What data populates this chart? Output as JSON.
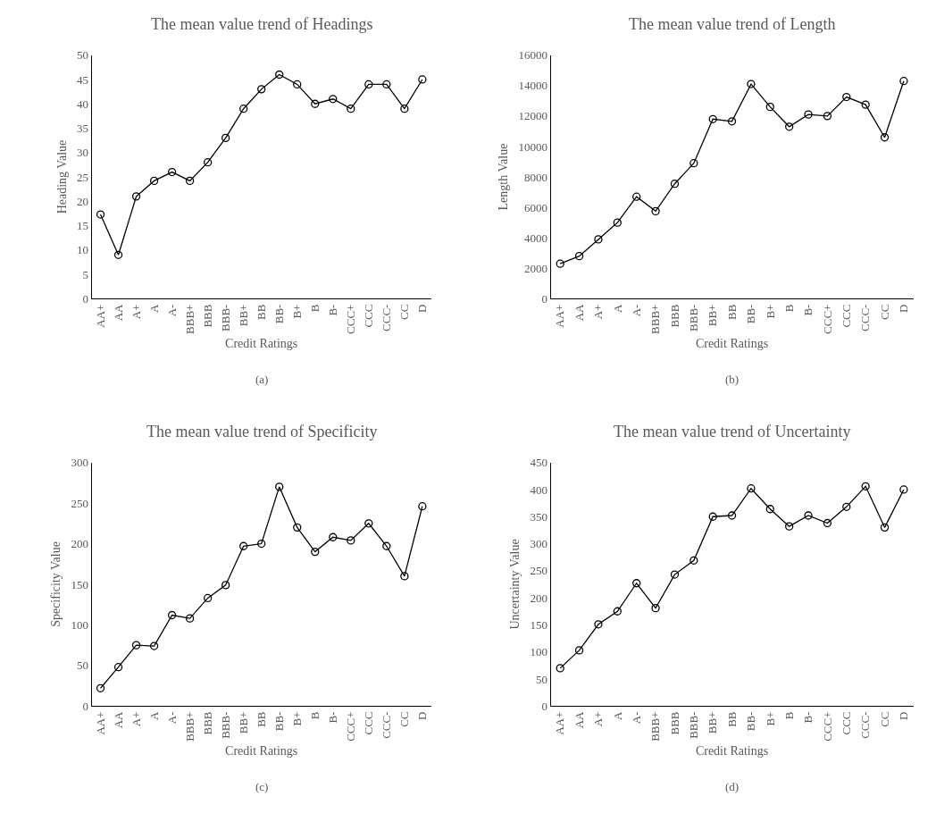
{
  "chart_data": [
    {
      "type": "line",
      "title": "The mean value trend of Headings",
      "xlabel": "Credit Ratings",
      "ylabel": "Heading Value",
      "annotations": [
        "(a)"
      ],
      "categories": [
        "AA+",
        "AA",
        "A+",
        "A",
        "A-",
        "BBB+",
        "BBB",
        "BBB-",
        "BB+",
        "BB",
        "BB-",
        "B+",
        "B",
        "B-",
        "CCC+",
        "CCC",
        "CCC-",
        "CC",
        "D"
      ],
      "series": [
        {
          "color": "#000000",
          "values": [
            17.3,
            9,
            21,
            24.2,
            26,
            24.2,
            28,
            33,
            39,
            43,
            46,
            44,
            40,
            41,
            39,
            44,
            44,
            39,
            45
          ]
        }
      ],
      "ylim": [
        0,
        50
      ],
      "yticks": [
        0,
        5,
        10,
        15,
        20,
        25,
        30,
        35,
        40,
        45,
        50
      ],
      "marker": "circle",
      "line_style": "solid"
    },
    {
      "type": "line",
      "title": "The mean value trend of Length",
      "xlabel": "Credit Ratings",
      "ylabel": "Length Value",
      "annotations": [
        "(b)"
      ],
      "categories": [
        "AA+",
        "AA",
        "A+",
        "A",
        "A-",
        "BBB+",
        "BBB",
        "BBB-",
        "BB+",
        "BB",
        "BB-",
        "B+",
        "B",
        "B-",
        "CCC+",
        "CCC",
        "CCC-",
        "CC",
        "D"
      ],
      "series": [
        {
          "color": "#000000",
          "values": [
            2300,
            2800,
            3900,
            5000,
            6700,
            5750,
            7550,
            8900,
            11800,
            11650,
            14100,
            12600,
            11300,
            12100,
            12000,
            13250,
            12750,
            10600,
            14300
          ]
        }
      ],
      "ylim": [
        0,
        16000
      ],
      "yticks": [
        0,
        2000,
        4000,
        6000,
        8000,
        10000,
        12000,
        14000,
        16000
      ],
      "marker": "circle",
      "line_style": "solid"
    },
    {
      "type": "line",
      "title": "The mean value trend of Specificity",
      "xlabel": "Credit Ratings",
      "ylabel": "Specificity Value",
      "annotations": [
        "(c)"
      ],
      "categories": [
        "AA+",
        "AA",
        "A+",
        "A",
        "A-",
        "BBB+",
        "BBB",
        "BBB-",
        "BB+",
        "BB",
        "BB-",
        "B+",
        "B",
        "B-",
        "CCC+",
        "CCC",
        "CCC-",
        "CC",
        "D"
      ],
      "series": [
        {
          "color": "#000000",
          "values": [
            22,
            48,
            75,
            74,
            112,
            108,
            133,
            149,
            197,
            200,
            270,
            220,
            190,
            208,
            204,
            225,
            197,
            160,
            246
          ]
        }
      ],
      "ylim": [
        0,
        300
      ],
      "yticks": [
        0,
        50,
        100,
        150,
        200,
        250,
        300
      ],
      "marker": "circle",
      "line_style": "solid"
    },
    {
      "type": "line",
      "title": "The mean value trend of Uncertainty",
      "xlabel": "Credit Ratings",
      "ylabel": "Uncertainty Value",
      "annotations": [
        "(d)"
      ],
      "categories": [
        "AA+",
        "AA",
        "A+",
        "A",
        "A-",
        "BBB+",
        "BBB",
        "BBB-",
        "BB+",
        "BB",
        "BB-",
        "B+",
        "B",
        "B-",
        "CCC+",
        "CCC",
        "CCC-",
        "CC",
        "D"
      ],
      "series": [
        {
          "color": "#000000",
          "values": [
            70,
            103,
            151,
            175,
            227,
            181,
            243,
            269,
            350,
            352,
            402,
            364,
            332,
            352,
            338,
            368,
            406,
            330,
            400
          ]
        }
      ],
      "ylim": [
        0,
        450
      ],
      "yticks": [
        0,
        50,
        100,
        150,
        200,
        250,
        300,
        350,
        400,
        450
      ],
      "marker": "circle",
      "line_style": "solid"
    }
  ]
}
